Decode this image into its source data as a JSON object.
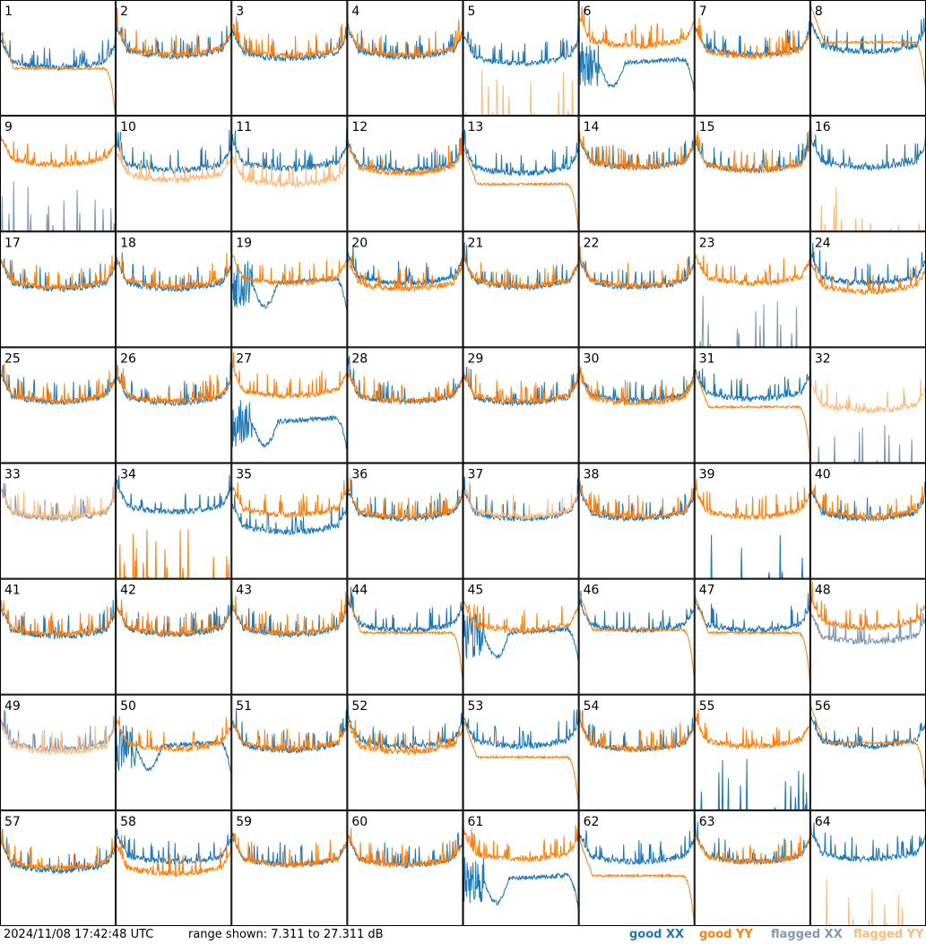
{
  "footer": {
    "timestamp": "2024/11/08 17:42:48 UTC",
    "range_text": "range shown: 7.311 to 27.311 dB",
    "legend": [
      {
        "label": "good XX",
        "color": "#1f77b4"
      },
      {
        "label": "good YY",
        "color": "#ff7f0e"
      },
      {
        "label": "flagged XX",
        "color": "#7f99b4"
      },
      {
        "label": "flagged YY",
        "color": "#ffb97a"
      }
    ]
  },
  "colors": {
    "good_xx": "#1f77b4",
    "good_yy": "#ff7f0e",
    "flagged_xx": "#7f99b4",
    "flagged_yy": "#ffb97a"
  },
  "chart_data": {
    "type": "line",
    "layout": "small multiples, 8 columns x 8 rows",
    "ylim": [
      7.311,
      27.311
    ],
    "yunit": "dB",
    "panel_labels": [
      "1",
      "2",
      "3",
      "4",
      "5",
      "6",
      "7",
      "8",
      "9",
      "10",
      "11",
      "12",
      "13",
      "14",
      "15",
      "16",
      "17",
      "18",
      "19",
      "20",
      "21",
      "22",
      "23",
      "24",
      "25",
      "26",
      "27",
      "28",
      "29",
      "30",
      "31",
      "32",
      "33",
      "34",
      "35",
      "36",
      "37",
      "38",
      "39",
      "40",
      "41",
      "42",
      "43",
      "44",
      "45",
      "46",
      "47",
      "48",
      "49",
      "50",
      "51",
      "52",
      "53",
      "54",
      "55",
      "56",
      "57",
      "58",
      "59",
      "60",
      "61",
      "62",
      "63",
      "64"
    ],
    "panels": [
      {
        "id": 1,
        "xx": {
          "shape": "bathtub",
          "level": 17.3,
          "status": "good"
        },
        "yy": {
          "shape": "rolloff",
          "level": 15.5,
          "status": "good"
        },
        "front": "yy"
      },
      {
        "id": 2,
        "xx": {
          "shape": "bathtub",
          "level": 19.2,
          "status": "good"
        },
        "yy": {
          "shape": "bathtub",
          "level": 19.5,
          "status": "good"
        },
        "front": "yy"
      },
      {
        "id": 3,
        "xx": {
          "shape": "bathtub",
          "level": 18.8,
          "status": "good"
        },
        "yy": {
          "shape": "bathtub",
          "level": 19.3,
          "status": "good"
        },
        "front": "yy"
      },
      {
        "id": 4,
        "xx": {
          "shape": "bathtub",
          "level": 19.1,
          "status": "good"
        },
        "yy": {
          "shape": "bathtub",
          "level": 19.4,
          "status": "good"
        },
        "front": "yy"
      },
      {
        "id": 5,
        "xx": {
          "shape": "bathtub",
          "level": 18.0,
          "status": "good"
        },
        "yy": {
          "shape": "spikes",
          "level": 7.5,
          "status": "flagged"
        },
        "front": "xx"
      },
      {
        "id": 6,
        "xx": {
          "shape": "deepdip",
          "level": 16.0,
          "status": "good"
        },
        "yy": {
          "shape": "bathtub",
          "level": 21.0,
          "status": "good"
        },
        "front": "yy"
      },
      {
        "id": 7,
        "xx": {
          "shape": "bathtub",
          "level": 19.5,
          "status": "good"
        },
        "yy": {
          "shape": "bathtub",
          "level": 19.2,
          "status": "good"
        },
        "front": "yy"
      },
      {
        "id": 8,
        "xx": {
          "shape": "bathtub",
          "level": 20.0,
          "status": "good"
        },
        "yy": {
          "shape": "rolloff",
          "level": 20.0,
          "status": "good"
        },
        "front": "yy"
      },
      {
        "id": 9,
        "xx": {
          "shape": "spikes",
          "level": 8.0,
          "status": "flagged"
        },
        "yy": {
          "shape": "bathtub",
          "level": 20.5,
          "status": "good"
        },
        "front": "yy"
      },
      {
        "id": 10,
        "xx": {
          "shape": "bathtub",
          "level": 19.5,
          "status": "good"
        },
        "yy": {
          "shape": "bathtub",
          "level": 17.8,
          "status": "flagged"
        },
        "front": "yy"
      },
      {
        "id": 11,
        "xx": {
          "shape": "bathtub",
          "level": 19.8,
          "status": "good"
        },
        "yy": {
          "shape": "bathtub",
          "level": 17.0,
          "status": "flagged"
        },
        "front": "yy"
      },
      {
        "id": 12,
        "xx": {
          "shape": "bathtub",
          "level": 19.5,
          "status": "good"
        },
        "yy": {
          "shape": "bathtub",
          "level": 19.0,
          "status": "good"
        },
        "front": "yy"
      },
      {
        "id": 13,
        "xx": {
          "shape": "bathtub",
          "level": 19.0,
          "status": "good"
        },
        "yy": {
          "shape": "rolloff",
          "level": 15.5,
          "status": "good"
        },
        "front": "yy"
      },
      {
        "id": 14,
        "xx": {
          "shape": "bathtub",
          "level": 20.0,
          "status": "good"
        },
        "yy": {
          "shape": "bathtub",
          "level": 20.0,
          "status": "good"
        },
        "front": "yy"
      },
      {
        "id": 15,
        "xx": {
          "shape": "bathtub",
          "level": 19.5,
          "status": "good"
        },
        "yy": {
          "shape": "bathtub",
          "level": 19.5,
          "status": "good"
        },
        "front": "yy"
      },
      {
        "id": 16,
        "xx": {
          "shape": "bathtub",
          "level": 20.0,
          "status": "good"
        },
        "yy": {
          "shape": "spikes",
          "level": 7.5,
          "status": "flagged"
        },
        "front": "xx"
      },
      {
        "id": 17,
        "xx": {
          "shape": "bathtub",
          "level": 19.0,
          "status": "good"
        },
        "yy": {
          "shape": "bathtub",
          "level": 19.3,
          "status": "good"
        },
        "front": "yy"
      },
      {
        "id": 18,
        "xx": {
          "shape": "bathtub",
          "level": 19.0,
          "status": "good"
        },
        "yy": {
          "shape": "bathtub",
          "level": 19.4,
          "status": "good"
        },
        "front": "yy"
      },
      {
        "id": 19,
        "xx": {
          "shape": "deepdip",
          "level": 18.0,
          "status": "good"
        },
        "yy": {
          "shape": "bathtub",
          "level": 20.0,
          "status": "good"
        },
        "front": "yy"
      },
      {
        "id": 20,
        "xx": {
          "shape": "bathtub",
          "level": 20.0,
          "status": "good"
        },
        "yy": {
          "shape": "bathtub",
          "level": 19.0,
          "status": "good"
        },
        "front": "yy"
      },
      {
        "id": 21,
        "xx": {
          "shape": "bathtub",
          "level": 19.3,
          "status": "good"
        },
        "yy": {
          "shape": "bathtub",
          "level": 19.5,
          "status": "good"
        },
        "front": "yy"
      },
      {
        "id": 22,
        "xx": {
          "shape": "bathtub",
          "level": 19.3,
          "status": "good"
        },
        "yy": {
          "shape": "bathtub",
          "level": 19.6,
          "status": "good"
        },
        "front": "yy"
      },
      {
        "id": 23,
        "xx": {
          "shape": "spikes",
          "level": 9.0,
          "status": "flagged"
        },
        "yy": {
          "shape": "bathtub",
          "level": 20.0,
          "status": "good"
        },
        "front": "yy"
      },
      {
        "id": 24,
        "xx": {
          "shape": "bathtub",
          "level": 20.0,
          "status": "good"
        },
        "yy": {
          "shape": "bathtub",
          "level": 18.5,
          "status": "good"
        },
        "front": "yy"
      },
      {
        "id": 25,
        "xx": {
          "shape": "bathtub",
          "level": 19.5,
          "status": "good"
        },
        "yy": {
          "shape": "bathtub",
          "level": 19.6,
          "status": "good"
        },
        "front": "yy"
      },
      {
        "id": 26,
        "xx": {
          "shape": "bathtub",
          "level": 19.3,
          "status": "good"
        },
        "yy": {
          "shape": "bathtub",
          "level": 19.6,
          "status": "good"
        },
        "front": "yy"
      },
      {
        "id": 27,
        "xx": {
          "shape": "deepdip",
          "level": 14.0,
          "status": "good"
        },
        "yy": {
          "shape": "bathtub",
          "level": 20.5,
          "status": "good"
        },
        "front": "yy"
      },
      {
        "id": 28,
        "xx": {
          "shape": "bathtub",
          "level": 19.5,
          "status": "good"
        },
        "yy": {
          "shape": "bathtub",
          "level": 19.6,
          "status": "good"
        },
        "front": "yy"
      },
      {
        "id": 29,
        "xx": {
          "shape": "bathtub",
          "level": 19.3,
          "status": "good"
        },
        "yy": {
          "shape": "bathtub",
          "level": 19.6,
          "status": "good"
        },
        "front": "yy"
      },
      {
        "id": 30,
        "xx": {
          "shape": "bathtub",
          "level": 19.8,
          "status": "good"
        },
        "yy": {
          "shape": "bathtub",
          "level": 19.3,
          "status": "good"
        },
        "front": "yy"
      },
      {
        "id": 31,
        "xx": {
          "shape": "bathtub",
          "level": 20.0,
          "status": "good"
        },
        "yy": {
          "shape": "rolloff",
          "level": 17.0,
          "status": "good"
        },
        "front": "yy"
      },
      {
        "id": 32,
        "xx": {
          "shape": "spikes",
          "level": 7.5,
          "status": "flagged"
        },
        "yy": {
          "shape": "bathtub",
          "level": 18.0,
          "status": "flagged"
        },
        "front": "yy"
      },
      {
        "id": 33,
        "xx": {
          "shape": "bathtub",
          "level": 19.3,
          "status": "flagged"
        },
        "yy": {
          "shape": "bathtub",
          "level": 19.6,
          "status": "flagged"
        },
        "front": "yy"
      },
      {
        "id": 34,
        "xx": {
          "shape": "bathtub",
          "level": 20.5,
          "status": "good"
        },
        "yy": {
          "shape": "spikes",
          "level": 8.0,
          "status": "good"
        },
        "front": "yy"
      },
      {
        "id": 35,
        "xx": {
          "shape": "bathtub",
          "level": 17.0,
          "status": "good"
        },
        "yy": {
          "shape": "bathtub",
          "level": 20.0,
          "status": "good"
        },
        "front": "yy"
      },
      {
        "id": 36,
        "xx": {
          "shape": "bathtub",
          "level": 19.3,
          "status": "good"
        },
        "yy": {
          "shape": "bathtub",
          "level": 19.6,
          "status": "good"
        },
        "front": "yy"
      },
      {
        "id": 37,
        "xx": {
          "shape": "bathtub",
          "level": 19.3,
          "status": "good"
        },
        "yy": {
          "shape": "bathtub",
          "level": 19.6,
          "status": "flagged"
        },
        "front": "yy"
      },
      {
        "id": 38,
        "xx": {
          "shape": "bathtub",
          "level": 19.3,
          "status": "good"
        },
        "yy": {
          "shape": "bathtub",
          "level": 19.6,
          "status": "good"
        },
        "front": "yy"
      },
      {
        "id": 39,
        "xx": {
          "shape": "spikes",
          "level": 7.5,
          "status": "good"
        },
        "yy": {
          "shape": "bathtub",
          "level": 19.6,
          "status": "good"
        },
        "front": "yy"
      },
      {
        "id": 40,
        "xx": {
          "shape": "bathtub",
          "level": 19.3,
          "status": "good"
        },
        "yy": {
          "shape": "bathtub",
          "level": 19.6,
          "status": "good"
        },
        "front": "yy"
      },
      {
        "id": 41,
        "xx": {
          "shape": "bathtub",
          "level": 19.0,
          "status": "good"
        },
        "yy": {
          "shape": "bathtub",
          "level": 19.3,
          "status": "good"
        },
        "front": "yy"
      },
      {
        "id": 42,
        "xx": {
          "shape": "bathtub",
          "level": 19.3,
          "status": "good"
        },
        "yy": {
          "shape": "bathtub",
          "level": 19.5,
          "status": "good"
        },
        "front": "yy"
      },
      {
        "id": 43,
        "xx": {
          "shape": "bathtub",
          "level": 19.3,
          "status": "good"
        },
        "yy": {
          "shape": "bathtub",
          "level": 19.5,
          "status": "good"
        },
        "front": "yy"
      },
      {
        "id": 44,
        "xx": {
          "shape": "bathtub",
          "level": 20.0,
          "status": "good"
        },
        "yy": {
          "shape": "rolloff",
          "level": 18.0,
          "status": "good"
        },
        "front": "yy"
      },
      {
        "id": 45,
        "xx": {
          "shape": "deepdip",
          "level": 17.5,
          "status": "good"
        },
        "yy": {
          "shape": "bathtub",
          "level": 20.0,
          "status": "good"
        },
        "front": "yy"
      },
      {
        "id": 46,
        "xx": {
          "shape": "bathtub",
          "level": 20.0,
          "status": "good"
        },
        "yy": {
          "shape": "rolloff",
          "level": 18.5,
          "status": "good"
        },
        "front": "yy"
      },
      {
        "id": 47,
        "xx": {
          "shape": "bathtub",
          "level": 20.0,
          "status": "good"
        },
        "yy": {
          "shape": "rolloff",
          "level": 18.0,
          "status": "good"
        },
        "front": "yy"
      },
      {
        "id": 48,
        "xx": {
          "shape": "bathtub",
          "level": 18.0,
          "status": "flagged"
        },
        "yy": {
          "shape": "bathtub",
          "level": 20.5,
          "status": "good"
        },
        "front": "yy"
      },
      {
        "id": 49,
        "xx": {
          "shape": "bathtub",
          "level": 19.5,
          "status": "flagged"
        },
        "yy": {
          "shape": "bathtub",
          "level": 19.0,
          "status": "flagged"
        },
        "front": "yy"
      },
      {
        "id": 50,
        "xx": {
          "shape": "deepdip",
          "level": 18.0,
          "status": "good"
        },
        "yy": {
          "shape": "bathtub",
          "level": 19.5,
          "status": "good"
        },
        "front": "yy"
      },
      {
        "id": 51,
        "xx": {
          "shape": "bathtub",
          "level": 19.3,
          "status": "good"
        },
        "yy": {
          "shape": "bathtub",
          "level": 19.5,
          "status": "good"
        },
        "front": "yy"
      },
      {
        "id": 52,
        "xx": {
          "shape": "bathtub",
          "level": 20.0,
          "status": "good"
        },
        "yy": {
          "shape": "bathtub",
          "level": 19.0,
          "status": "good"
        },
        "front": "yy"
      },
      {
        "id": 53,
        "xx": {
          "shape": "bathtub",
          "level": 20.0,
          "status": "good"
        },
        "yy": {
          "shape": "rolloff",
          "level": 16.5,
          "status": "good"
        },
        "front": "yy"
      },
      {
        "id": 54,
        "xx": {
          "shape": "bathtub",
          "level": 19.5,
          "status": "good"
        },
        "yy": {
          "shape": "bathtub",
          "level": 19.5,
          "status": "good"
        },
        "front": "yy"
      },
      {
        "id": 55,
        "xx": {
          "shape": "spikes",
          "level": 8.5,
          "status": "good"
        },
        "yy": {
          "shape": "bathtub",
          "level": 20.0,
          "status": "good"
        },
        "front": "yy"
      },
      {
        "id": 56,
        "xx": {
          "shape": "bathtub",
          "level": 20.0,
          "status": "good"
        },
        "yy": {
          "shape": "rolloff",
          "level": 19.0,
          "status": "good"
        },
        "front": "yy"
      },
      {
        "id": 57,
        "xx": {
          "shape": "bathtub",
          "level": 18.5,
          "status": "good"
        },
        "yy": {
          "shape": "bathtub",
          "level": 19.0,
          "status": "good"
        },
        "front": "yy"
      },
      {
        "id": 58,
        "xx": {
          "shape": "bathtub",
          "level": 20.0,
          "status": "good"
        },
        "yy": {
          "shape": "bathtub",
          "level": 18.0,
          "status": "good"
        },
        "front": "yy"
      },
      {
        "id": 59,
        "xx": {
          "shape": "bathtub",
          "level": 19.5,
          "status": "good"
        },
        "yy": {
          "shape": "bathtub",
          "level": 19.5,
          "status": "good"
        },
        "front": "yy"
      },
      {
        "id": 60,
        "xx": {
          "shape": "bathtub",
          "level": 19.5,
          "status": "good"
        },
        "yy": {
          "shape": "bathtub",
          "level": 19.5,
          "status": "good"
        },
        "front": "yy"
      },
      {
        "id": 61,
        "xx": {
          "shape": "deepdip",
          "level": 15.0,
          "status": "good"
        },
        "yy": {
          "shape": "bathtub",
          "level": 20.5,
          "status": "good"
        },
        "front": "yy"
      },
      {
        "id": 62,
        "xx": {
          "shape": "bathtub",
          "level": 20.0,
          "status": "good"
        },
        "yy": {
          "shape": "rolloff",
          "level": 16.0,
          "status": "good"
        },
        "front": "yy"
      },
      {
        "id": 63,
        "xx": {
          "shape": "bathtub",
          "level": 20.0,
          "status": "good"
        },
        "yy": {
          "shape": "bathtub",
          "level": 20.0,
          "status": "good"
        },
        "front": "yy"
      },
      {
        "id": 64,
        "xx": {
          "shape": "bathtub",
          "level": 20.5,
          "status": "good"
        },
        "yy": {
          "shape": "spikes",
          "level": 7.5,
          "status": "flagged"
        },
        "front": "xx"
      }
    ]
  }
}
